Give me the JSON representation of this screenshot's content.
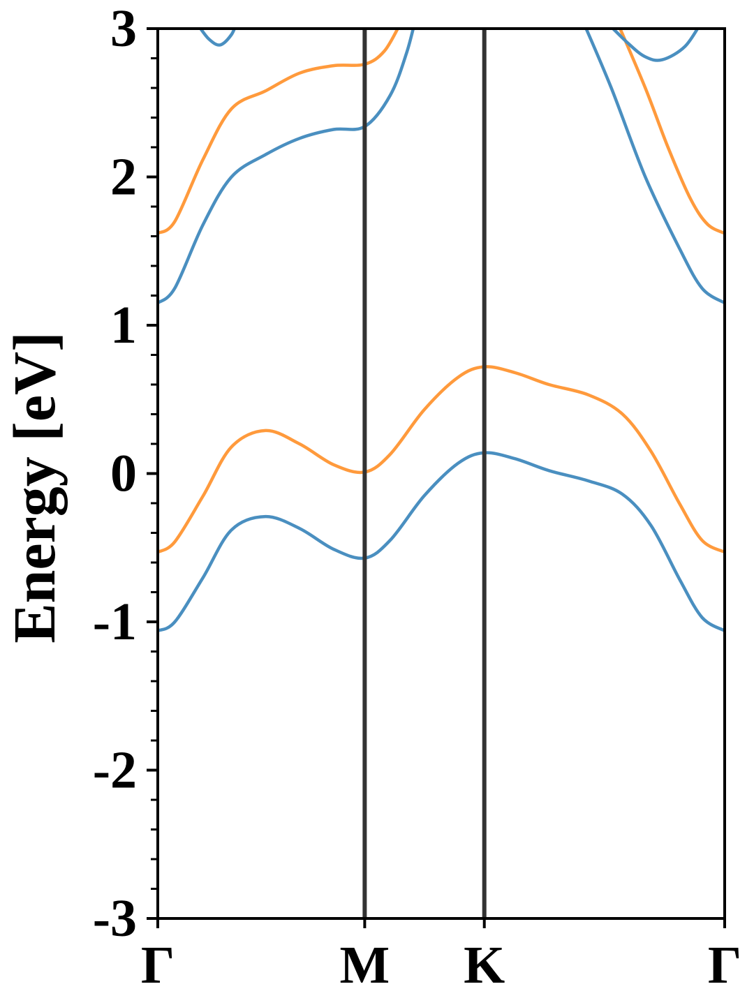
{
  "chart_data": {
    "type": "line",
    "title": "",
    "xlabel": "",
    "ylabel": "Energy [eV]",
    "ylim": [
      -3,
      3
    ],
    "xlim": [
      0,
      1
    ],
    "yticks": [
      -3,
      -2,
      -1,
      0,
      1,
      2,
      3
    ],
    "ytick_labels": [
      "-3",
      "-2",
      "-1",
      "0",
      "1",
      "2",
      "3"
    ],
    "yminor_step": 0.2,
    "kpoints": [
      {
        "label": "Γ",
        "x": 0.0
      },
      {
        "label": "M",
        "x": 0.365
      },
      {
        "label": "K",
        "x": 0.576
      },
      {
        "label": "Γ",
        "x": 1.0
      }
    ],
    "grid": false,
    "legend": "none",
    "colors": {
      "blue": "#4a8fc0",
      "orange": "#ff9a3c",
      "kline": "#333333"
    },
    "series": [
      {
        "color": "blue",
        "points": [
          [
            0.0,
            -1.06
          ],
          [
            0.03,
            -1.0
          ],
          [
            0.08,
            -0.7
          ],
          [
            0.13,
            -0.38
          ],
          [
            0.19,
            -0.29
          ],
          [
            0.25,
            -0.37
          ],
          [
            0.31,
            -0.51
          ],
          [
            0.365,
            -0.57
          ],
          [
            0.41,
            -0.45
          ],
          [
            0.47,
            -0.15
          ],
          [
            0.53,
            0.07
          ],
          [
            0.576,
            0.14
          ],
          [
            0.63,
            0.1
          ],
          [
            0.69,
            0.02
          ],
          [
            0.76,
            -0.05
          ],
          [
            0.82,
            -0.14
          ],
          [
            0.87,
            -0.35
          ],
          [
            0.92,
            -0.71
          ],
          [
            0.96,
            -0.97
          ],
          [
            1.0,
            -1.06
          ]
        ]
      },
      {
        "color": "orange",
        "points": [
          [
            0.0,
            -0.53
          ],
          [
            0.03,
            -0.46
          ],
          [
            0.08,
            -0.15
          ],
          [
            0.13,
            0.18
          ],
          [
            0.19,
            0.29
          ],
          [
            0.25,
            0.2
          ],
          [
            0.31,
            0.06
          ],
          [
            0.365,
            0.01
          ],
          [
            0.41,
            0.13
          ],
          [
            0.47,
            0.43
          ],
          [
            0.53,
            0.65
          ],
          [
            0.576,
            0.72
          ],
          [
            0.63,
            0.68
          ],
          [
            0.69,
            0.6
          ],
          [
            0.76,
            0.53
          ],
          [
            0.82,
            0.4
          ],
          [
            0.87,
            0.15
          ],
          [
            0.92,
            -0.2
          ],
          [
            0.96,
            -0.45
          ],
          [
            1.0,
            -0.53
          ]
        ]
      },
      {
        "color": "blue",
        "points": [
          [
            0.0,
            1.15
          ],
          [
            0.03,
            1.25
          ],
          [
            0.08,
            1.68
          ],
          [
            0.13,
            2.0
          ],
          [
            0.19,
            2.15
          ],
          [
            0.25,
            2.26
          ],
          [
            0.31,
            2.32
          ],
          [
            0.365,
            2.34
          ],
          [
            0.41,
            2.55
          ],
          [
            0.44,
            2.85
          ],
          [
            0.46,
            3.15
          ]
        ]
      },
      {
        "color": "orange",
        "points": [
          [
            0.0,
            1.62
          ],
          [
            0.03,
            1.7
          ],
          [
            0.08,
            2.12
          ],
          [
            0.13,
            2.46
          ],
          [
            0.19,
            2.58
          ],
          [
            0.25,
            2.7
          ],
          [
            0.31,
            2.75
          ],
          [
            0.365,
            2.76
          ],
          [
            0.4,
            2.85
          ],
          [
            0.43,
            3.05
          ]
        ]
      },
      {
        "color": "blue",
        "points": [
          [
            0.07,
            3.03
          ],
          [
            0.09,
            2.93
          ],
          [
            0.11,
            2.89
          ],
          [
            0.13,
            2.96
          ],
          [
            0.14,
            3.05
          ]
        ]
      },
      {
        "color": "blue",
        "points": [
          [
            0.75,
            3.05
          ],
          [
            0.8,
            2.6
          ],
          [
            0.86,
            2.0
          ],
          [
            0.92,
            1.52
          ],
          [
            0.96,
            1.25
          ],
          [
            1.0,
            1.15
          ]
        ]
      },
      {
        "color": "orange",
        "points": [
          [
            0.81,
            3.05
          ],
          [
            0.86,
            2.6
          ],
          [
            0.9,
            2.2
          ],
          [
            0.94,
            1.85
          ],
          [
            0.97,
            1.68
          ],
          [
            1.0,
            1.62
          ]
        ]
      },
      {
        "color": "blue",
        "points": [
          [
            0.79,
            3.05
          ],
          [
            0.83,
            2.9
          ],
          [
            0.86,
            2.81
          ],
          [
            0.89,
            2.79
          ],
          [
            0.93,
            2.88
          ],
          [
            0.96,
            3.05
          ]
        ]
      }
    ]
  }
}
